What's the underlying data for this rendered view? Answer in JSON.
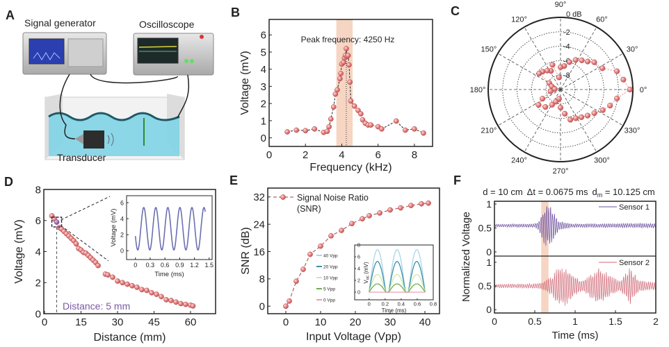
{
  "panel_labels": [
    "A",
    "B",
    "C",
    "D",
    "E",
    "F"
  ],
  "panel_a": {
    "signal_generator": "Signal generator",
    "oscilloscope": "Oscilloscope",
    "transducer": "Transducer"
  },
  "colors": {
    "marker": "#d9534f",
    "marker_highlight": "#7b5aa6",
    "band": "#f6d5c3",
    "sensor_1": "#6a4c9c",
    "sensor_2": "#d06a78",
    "water": "#7fd3e6"
  },
  "chart_data": [
    {
      "panel": "B",
      "type": "line",
      "xlabel": "Frequency (kHz)",
      "ylabel": "Voltage (mV)",
      "xlim": [
        0,
        9
      ],
      "ylim": [
        -0.5,
        6.9
      ],
      "xticks": [
        "0",
        "2",
        "4",
        "6",
        "8"
      ],
      "yticks": [
        "0",
        "1",
        "2",
        "3",
        "4",
        "5",
        "6"
      ],
      "annotation": "Peak frequency: 4250 Hz",
      "peak_x": 4.25,
      "highlight_band": [
        3.7,
        4.6
      ],
      "x": [
        1,
        1.5,
        2,
        2.5,
        3,
        3.2,
        3.3,
        3.4,
        3.55,
        3.65,
        3.75,
        3.9,
        3.95,
        4.0,
        4.1,
        4.15,
        4.2,
        4.25,
        4.3,
        4.35,
        4.4,
        4.45,
        4.5,
        4.7,
        4.9,
        5.05,
        5.15,
        5.3,
        5.45,
        5.6,
        6.0,
        6.2,
        7.0,
        7.5,
        8.0,
        8.5
      ],
      "y": [
        0.35,
        0.45,
        0.42,
        0.52,
        0.32,
        0.38,
        0.65,
        1.1,
        1.8,
        2.55,
        2.8,
        3.45,
        3.75,
        4.3,
        4.4,
        4.65,
        4.8,
        5.2,
        4.75,
        4.8,
        4.25,
        3.25,
        2.15,
        1.85,
        1.6,
        1.4,
        1.05,
        0.85,
        0.75,
        0.75,
        0.65,
        0.52,
        0.98,
        0.45,
        0.52,
        0.28
      ]
    },
    {
      "panel": "C",
      "type": "scatter",
      "coordinate_system": "polar",
      "radial_unit": "dB",
      "rlim": [
        -10,
        0
      ],
      "radial_ticks": [
        "-8",
        "-6",
        "-4",
        "-2",
        "0 dB"
      ],
      "radial_tick_values": [
        -8,
        -6,
        -4,
        -2,
        0
      ],
      "angle_ticks": [
        "0°",
        "30°",
        "60°",
        "90°",
        "120°",
        "150°",
        "180°",
        "210°",
        "240°",
        "270°",
        "300°",
        "330°"
      ],
      "angle_tick_values": [
        0,
        30,
        60,
        90,
        120,
        150,
        180,
        210,
        240,
        270,
        300,
        330
      ],
      "points": [
        [
          0,
          -0.4
        ],
        [
          9,
          -1.2
        ],
        [
          18,
          -1.8
        ],
        [
          27,
          -3.5
        ],
        [
          39,
          -4.0
        ],
        [
          46,
          -4.6
        ],
        [
          54,
          -5.0
        ],
        [
          63,
          -5.4
        ],
        [
          72,
          -6.0
        ],
        [
          81,
          -6.7
        ],
        [
          90,
          -6.9
        ],
        [
          97,
          -8.3
        ],
        [
          108,
          -6.4
        ],
        [
          117,
          -7.1
        ],
        [
          125,
          -6.8
        ],
        [
          135,
          -6.5
        ],
        [
          143,
          -6.3
        ],
        [
          150,
          -8.2
        ],
        [
          160,
          -8.7
        ],
        [
          175,
          -9.2
        ],
        [
          190,
          -8.6
        ],
        [
          207,
          -7.2
        ],
        [
          215,
          -6.3
        ],
        [
          229,
          -6.8
        ],
        [
          241,
          -7.6
        ],
        [
          249,
          -8.2
        ],
        [
          261,
          -8.7
        ],
        [
          270,
          -7.5
        ],
        [
          280,
          -6.6
        ],
        [
          288,
          -5.6
        ],
        [
          298,
          -5.5
        ],
        [
          307,
          -5.2
        ],
        [
          316,
          -4.8
        ],
        [
          325,
          -4.3
        ],
        [
          334,
          -3.5
        ],
        [
          342,
          -2.8
        ],
        [
          351,
          -2.1
        ]
      ]
    },
    {
      "panel": "D",
      "type": "scatter",
      "xlabel": "Distance (mm)",
      "ylabel": "Voltage (mV)",
      "xlim": [
        -0.3,
        70.3
      ],
      "ylim": [
        0,
        8
      ],
      "xticks": [
        "0",
        "15",
        "30",
        "45",
        "60"
      ],
      "yticks": [
        "0",
        "2",
        "4",
        "6",
        "8"
      ],
      "annotation": "Distance: 5 mm",
      "highlight_x": 5,
      "x": [
        3,
        4,
        5,
        6,
        7,
        8,
        9,
        10,
        11,
        12,
        13,
        14,
        15,
        16,
        17,
        18,
        19,
        20,
        21,
        22,
        25,
        26,
        28,
        30,
        32,
        34,
        36,
        38,
        40,
        42,
        44,
        46,
        48,
        50,
        52,
        54,
        56,
        58,
        60,
        61
      ],
      "y": [
        6.3,
        6.1,
        5.9,
        5.55,
        5.45,
        5.3,
        5.15,
        5.0,
        4.85,
        4.7,
        4.5,
        4.2,
        4.1,
        3.95,
        3.9,
        3.75,
        3.6,
        3.45,
        3.3,
        3.1,
        2.55,
        2.5,
        2.35,
        2.1,
        2.0,
        1.9,
        1.8,
        1.7,
        1.55,
        1.5,
        1.35,
        1.25,
        1.1,
        0.9,
        0.85,
        0.75,
        0.65,
        0.6,
        0.55,
        0.5
      ]
    },
    {
      "panel": "D-inset",
      "type": "line",
      "xlabel": "Time (ms)",
      "ylabel": "Voltage (mV)",
      "xlim": [
        -0.18,
        1.56
      ],
      "ylim": [
        -1.1,
        6.87
      ],
      "xticks": [
        "0",
        "0.3",
        "0.6",
        "0.9",
        "1.2",
        "1.5"
      ],
      "yticks": [
        "0",
        "2",
        "4",
        "6"
      ],
      "waveform": {
        "shape": "sine",
        "min": 0.1,
        "max": 5.4,
        "period": 0.245,
        "first_peak": 0.17,
        "t_range": [
          0,
          1.42
        ]
      }
    },
    {
      "panel": "E",
      "type": "line",
      "xlabel": "Input Voltage (Vpp)",
      "ylabel": "SNR (dB)",
      "xlim": [
        -5.2,
        44.2
      ],
      "ylim": [
        -2.2,
        34.6
      ],
      "xticks": [
        "0",
        "10",
        "20",
        "30",
        "40"
      ],
      "yticks": [
        "0",
        "8",
        "16",
        "24",
        "32"
      ],
      "legend_lines": [
        "Signal Noise Ratio",
        "(SNR)"
      ],
      "legend_position": "top-left",
      "x": [
        0,
        1,
        3,
        5,
        7,
        10,
        13,
        16,
        19,
        22,
        24,
        27,
        30,
        33,
        36,
        39,
        41
      ],
      "y": [
        0,
        1.5,
        7.3,
        10.8,
        15.2,
        17.6,
        20.6,
        22.2,
        24.2,
        25.6,
        26.5,
        27.3,
        28.2,
        28.8,
        29.5,
        30.0,
        30.2
      ]
    },
    {
      "panel": "E-inset",
      "type": "line",
      "xlabel": "Time (ms)",
      "ylabel_main": "V",
      "ylabel_sub": "oc",
      "ylabel_unit": " (mV)",
      "xlim": [
        -0.18,
        0.8
      ],
      "ylim": [
        -1.3,
        8
      ],
      "xticks": [
        "0",
        "0.2",
        "0.4",
        "0.6",
        "0.8"
      ],
      "yticks": [
        "0",
        "2",
        "4",
        "6",
        "8"
      ],
      "waveform": {
        "shape": "rectified-sine",
        "period": 0.245,
        "on_fraction": 0.85,
        "t_range": [
          0,
          0.7
        ]
      },
      "series": [
        {
          "name": "40 Vpp",
          "peak": 7.2,
          "color": "#a9d6e5"
        },
        {
          "name": "20 Vpp",
          "peak": 5.2,
          "color": "#3a8fa8"
        },
        {
          "name": "10 Vpp",
          "peak": 3.0,
          "color": "#cfe6a8"
        },
        {
          "name": "5 Vpp",
          "peak": 1.4,
          "color": "#6ab04c"
        },
        {
          "name": "0 Vpp",
          "peak": 0.0,
          "color": "#e8a0b0"
        }
      ]
    },
    {
      "panel": "F",
      "type": "line",
      "title": {
        "d": "d = 10 cm",
        "dt": "Δt = 0.0675 ms",
        "dm_symbol": "d",
        "dm_sub": "m",
        "dm_value": " = 10.125 cm"
      },
      "xlabel": "Time (ms)",
      "ylabel": "Normalized Voltage",
      "xlim": [
        0,
        2
      ],
      "xticks": [
        "0",
        "0.5",
        "1",
        "1.5",
        "2"
      ],
      "highlight_band": [
        0.58,
        0.67
      ],
      "series": [
        {
          "name": "Sensor 1",
          "ylim": [
            -0.087,
            1.058
          ],
          "yticks": [
            "0",
            "0.5",
            "1"
          ],
          "baseline": 0.55,
          "envelope": [
            [
              0,
              0.03
            ],
            [
              0.5,
              0.04
            ],
            [
              0.55,
              0.1
            ],
            [
              0.62,
              0.45
            ],
            [
              0.7,
              0.4
            ],
            [
              0.8,
              0.1
            ],
            [
              0.9,
              0.06
            ],
            [
              1.0,
              0.04
            ],
            [
              2,
              0.05
            ]
          ]
        },
        {
          "name": "Sensor 2",
          "ylim": [
            -0.07,
            1.13
          ],
          "yticks": [
            "0",
            "0.5",
            "1"
          ],
          "baseline": 0.5,
          "envelope": [
            [
              0,
              0.04
            ],
            [
              0.5,
              0.05
            ],
            [
              0.6,
              0.08
            ],
            [
              0.7,
              0.2
            ],
            [
              0.8,
              0.42
            ],
            [
              0.88,
              0.45
            ],
            [
              1.0,
              0.2
            ],
            [
              1.1,
              0.12
            ],
            [
              1.3,
              0.43
            ],
            [
              1.45,
              0.2
            ],
            [
              1.55,
              0.12
            ],
            [
              1.68,
              0.4
            ],
            [
              1.8,
              0.12
            ],
            [
              2,
              0.08
            ]
          ]
        }
      ]
    }
  ]
}
